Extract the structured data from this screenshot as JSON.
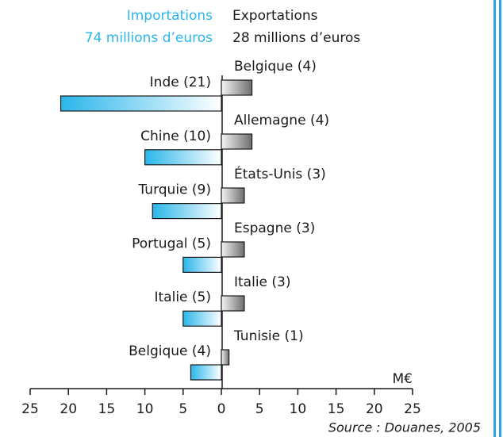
{
  "chart_data": {
    "type": "diverging-bar",
    "axis_label": "M€",
    "source": "Source : Douanes, 2005",
    "xlim": [
      -25,
      25
    ],
    "xticks": [
      {
        "value": -25,
        "label": "25"
      },
      {
        "value": -20,
        "label": "20"
      },
      {
        "value": -15,
        "label": "15"
      },
      {
        "value": -10,
        "label": "10"
      },
      {
        "value": -5,
        "label": "5"
      },
      0,
      5,
      10,
      15,
      20,
      25
    ],
    "series": [
      {
        "name": "Importations",
        "subtitle": "74 millions d’euros",
        "color": "#29b6ea",
        "categories": [
          "Inde (21)",
          "Chine (10)",
          "Turquie (9)",
          "Portugal (5)",
          "Italie (5)",
          "Belgique (4)"
        ],
        "values": [
          -21,
          -10,
          -9,
          -5,
          -5,
          -4
        ]
      },
      {
        "name": "Exportations",
        "subtitle": "28 millions d’euros",
        "color": "#6e6e6e",
        "categories": [
          "Belgique (4)",
          "Allemagne (4)",
          "États-Unis (3)",
          "Espagne (3)",
          "Italie (3)",
          "Tunisie (1)"
        ],
        "values": [
          4,
          4,
          3,
          3,
          3,
          1
        ]
      }
    ]
  }
}
